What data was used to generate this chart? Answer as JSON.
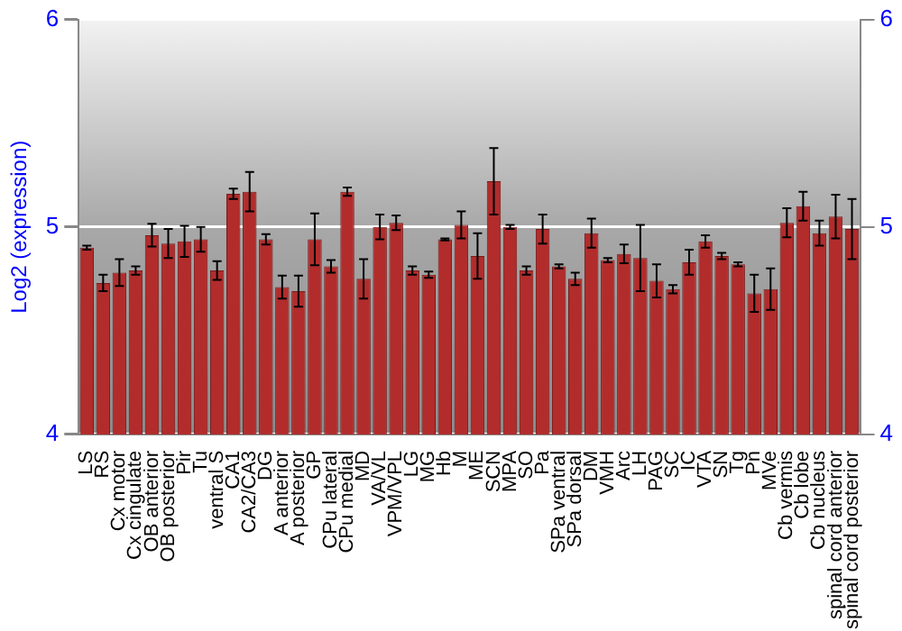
{
  "chart_data": {
    "type": "bar",
    "ylabel": "Log2 (expression)",
    "categories": [
      "LS",
      "RS",
      "Cx motor",
      "Cx cingulate",
      "OB anterior",
      "OB posterior",
      "Pir",
      "Tu",
      "ventral S",
      "CA1",
      "CA2/CA3",
      "DG",
      "A anterior",
      "A posterior",
      "GP",
      "CPu lateral",
      "CPu medial",
      "MD",
      "VA/VL",
      "VPM/VPL",
      "LG",
      "MG",
      "Hb",
      "M",
      "ME",
      "SCN",
      "MPA",
      "SO",
      "Pa",
      "SPa ventral",
      "SPa dorsal",
      "DM",
      "VMH",
      "Arc",
      "LH",
      "PAG",
      "SC",
      "IC",
      "VTA",
      "SN",
      "Tg",
      "Pn",
      "MVe",
      "Cb vermis",
      "Cb lobe",
      "Cb nucleus",
      "spinal cord anterior",
      "spinal cord posterior"
    ],
    "values": [
      4.9,
      4.73,
      4.78,
      4.79,
      4.96,
      4.92,
      4.93,
      4.94,
      4.79,
      5.16,
      5.17,
      4.94,
      4.71,
      4.69,
      4.94,
      4.81,
      5.17,
      4.75,
      5.0,
      5.02,
      4.79,
      4.77,
      4.94,
      5.01,
      4.86,
      5.22,
      5.0,
      4.79,
      4.99,
      4.81,
      4.75,
      4.97,
      4.84,
      4.87,
      4.85,
      4.74,
      4.7,
      4.83,
      4.93,
      4.86,
      4.82,
      4.68,
      4.7,
      5.02,
      5.1,
      4.97,
      5.05,
      4.99
    ],
    "errors": [
      0.01,
      0.04,
      0.065,
      0.02,
      0.055,
      0.07,
      0.075,
      0.06,
      0.045,
      0.025,
      0.095,
      0.025,
      0.055,
      0.075,
      0.125,
      0.03,
      0.02,
      0.095,
      0.06,
      0.035,
      0.02,
      0.015,
      0.005,
      0.065,
      0.11,
      0.16,
      0.01,
      0.02,
      0.07,
      0.01,
      0.03,
      0.07,
      0.01,
      0.045,
      0.16,
      0.08,
      0.02,
      0.06,
      0.03,
      0.015,
      0.01,
      0.09,
      0.1,
      0.07,
      0.07,
      0.06,
      0.105,
      0.145
    ],
    "color": "#b22c2c",
    "ylim": [
      4,
      6
    ],
    "yticks": [
      4,
      5,
      6
    ],
    "y2lim": [
      4,
      6
    ],
    "y2ticks": [
      4,
      5,
      6
    ],
    "grid": "y",
    "legend": false
  }
}
